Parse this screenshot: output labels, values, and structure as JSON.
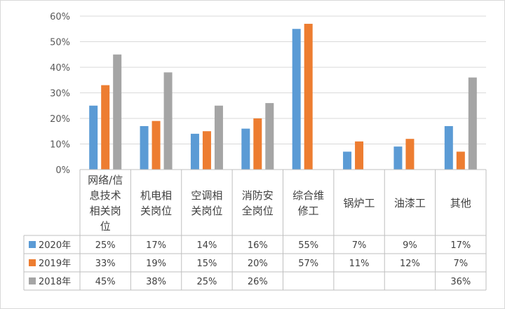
{
  "chart_data": {
    "type": "bar",
    "categories": [
      [
        "网络/信",
        "息技术",
        "相关岗",
        "位"
      ],
      [
        "机电相",
        "关岗位"
      ],
      [
        "空调相",
        "关岗位"
      ],
      [
        "消防安",
        "全岗位"
      ],
      [
        "综合维",
        "修工"
      ],
      [
        "锅炉工"
      ],
      [
        "油漆工"
      ],
      [
        "其他"
      ]
    ],
    "series": [
      {
        "name": "2020年",
        "color": "#5B9BD5",
        "values": [
          25,
          17,
          14,
          16,
          55,
          7,
          9,
          17
        ],
        "labels": [
          "25%",
          "17%",
          "14%",
          "16%",
          "55%",
          "7%",
          "9%",
          "17%"
        ]
      },
      {
        "name": "2019年",
        "color": "#ED7D31",
        "values": [
          33,
          19,
          15,
          20,
          57,
          11,
          12,
          7
        ],
        "labels": [
          "33%",
          "19%",
          "15%",
          "20%",
          "57%",
          "11%",
          "12%",
          "7%"
        ]
      },
      {
        "name": "2018年",
        "color": "#A5A5A5",
        "values": [
          45,
          38,
          25,
          26,
          null,
          null,
          null,
          36
        ],
        "labels": [
          "45%",
          "38%",
          "25%",
          "26%",
          "",
          "",
          "",
          "36%"
        ]
      }
    ],
    "ylim": [
      0,
      60
    ],
    "yticks": [
      "0%",
      "10%",
      "20%",
      "30%",
      "40%",
      "50%",
      "60%"
    ],
    "grid": true,
    "legend": "data-table"
  }
}
